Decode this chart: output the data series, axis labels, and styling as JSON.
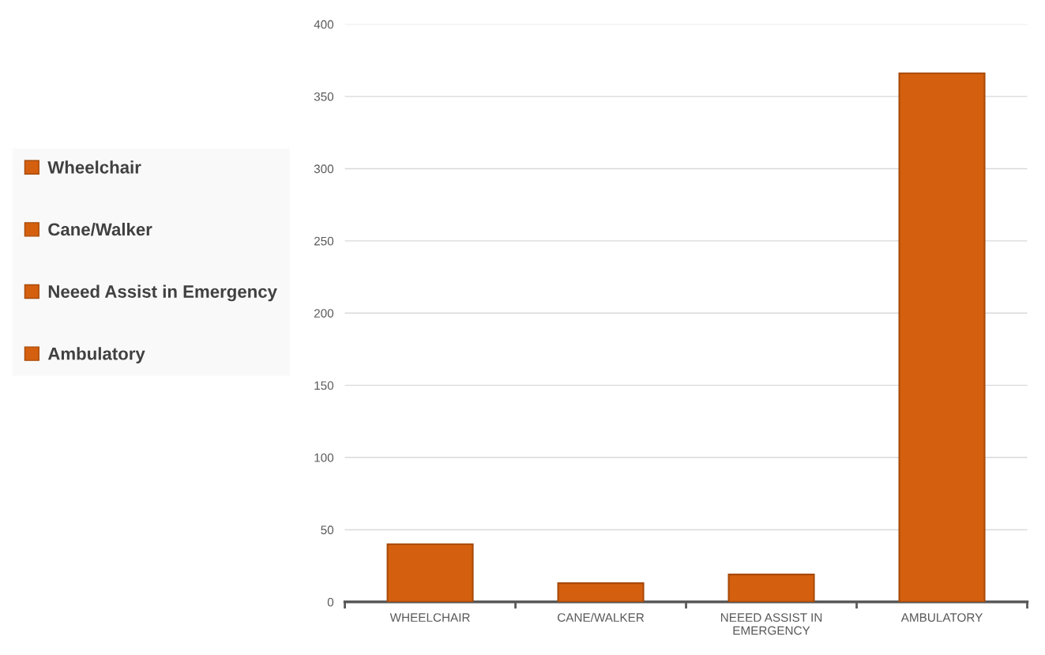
{
  "chart_data": {
    "type": "bar",
    "categories": [
      "WHEELCHAIR",
      "CANE/WALKER",
      "NEEED ASSIST IN\nEMERGENCY",
      "AMBULATORY"
    ],
    "series": [
      {
        "name": "Wheelchair",
        "color": "#d4600f",
        "values": [
          40,
          null,
          null,
          null
        ]
      },
      {
        "name": "Cane/Walker",
        "color": "#d4600f",
        "values": [
          null,
          13,
          null,
          null
        ]
      },
      {
        "name": "Neeed Assist in Emergency",
        "color": "#d4600f",
        "values": [
          null,
          null,
          19,
          null
        ]
      },
      {
        "name": "Ambulatory",
        "color": "#d4600f",
        "values": [
          null,
          null,
          null,
          366
        ]
      }
    ],
    "ylim": [
      0,
      400
    ],
    "yticks": [
      0,
      50,
      100,
      150,
      200,
      250,
      300,
      350,
      400
    ],
    "grid": "y",
    "legend": "left"
  }
}
